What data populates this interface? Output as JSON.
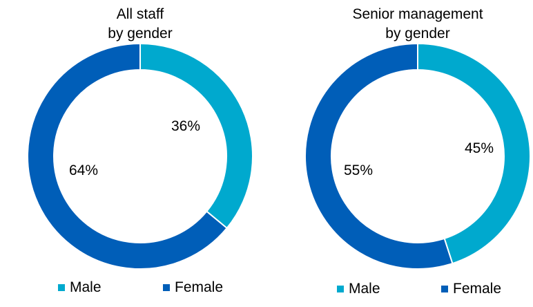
{
  "colors": {
    "Male": "#00a9ce",
    "Female": "#005eb8",
    "divider": "#ffffff"
  },
  "chart_data": [
    {
      "type": "pie",
      "title_lines": [
        "All staff",
        "by gender"
      ],
      "slices": [
        {
          "name": "Male",
          "value": 36,
          "label": "36%"
        },
        {
          "name": "Female",
          "value": 64,
          "label": "64%"
        }
      ],
      "legend": [
        "Male",
        "Female"
      ],
      "legend_position": "bottom"
    },
    {
      "type": "pie",
      "title_lines": [
        "Senior management",
        "by gender"
      ],
      "slices": [
        {
          "name": "Male",
          "value": 45,
          "label": "45%"
        },
        {
          "name": "Female",
          "value": 55,
          "label": "55%"
        }
      ],
      "legend": [
        "Male",
        "Female"
      ],
      "legend_position": "bottom"
    }
  ]
}
